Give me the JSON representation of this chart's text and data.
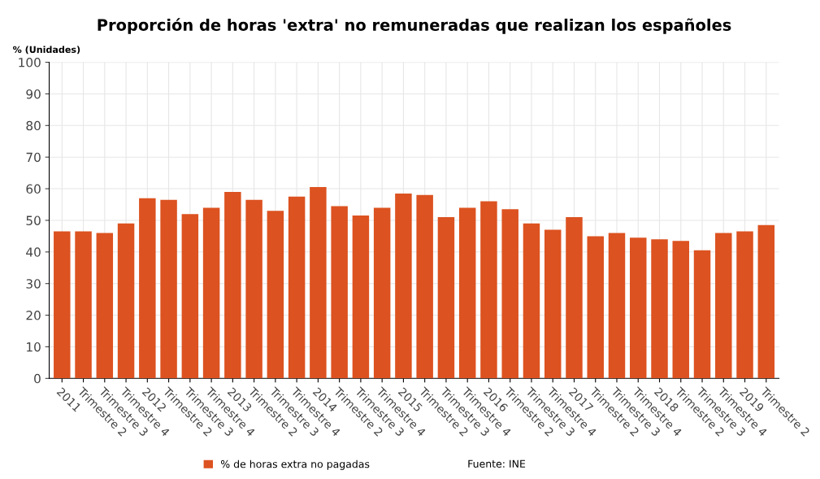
{
  "chart_data": {
    "type": "bar",
    "title": "Proporción de horas 'extra' no remuneradas que realizan los españoles",
    "ylabel": "% (Unidades)",
    "categories": [
      "2011",
      "Trimestre 2",
      "Trimestre 3",
      "Trimestre 4",
      "2012",
      "Trimestre 2",
      "Trimestre 3",
      "Trimestre 4",
      "2013",
      "Trimestre 2",
      "Trimestre 3",
      "Trimestre 4",
      "2014",
      "Trimestre 2",
      "Trimestre 3",
      "Trimestre 4",
      "2015",
      "Trimestre 2",
      "Trimestre 3",
      "Trimestre 4",
      "2016",
      "Trimestre 2",
      "Trimestre 3",
      "Trimestre 4",
      "2017",
      "Trimestre 2",
      "Trimestre 3",
      "Trimestre 4",
      "2018",
      "Trimestre 2",
      "Trimestre 3",
      "Trimestre 4",
      "2019",
      "Trimestre 2"
    ],
    "series": [
      {
        "name": "% de horas extra no pagadas",
        "color": "#dc5220",
        "values": [
          46.5,
          46.5,
          46,
          49,
          57,
          56.5,
          52,
          54,
          59,
          56.5,
          53,
          57.5,
          60.5,
          54.5,
          51.5,
          54,
          58.5,
          58,
          51,
          54,
          56,
          53.5,
          49,
          47,
          51,
          45,
          46,
          44.5,
          44,
          43.5,
          40.5,
          46,
          46.5,
          48.5
        ]
      }
    ],
    "ylim": [
      0,
      100
    ],
    "yticks": [
      0,
      10,
      20,
      30,
      40,
      50,
      60,
      70,
      80,
      90,
      100
    ],
    "grid": true,
    "legend": "bottom",
    "annotations": [
      "Fuente: INE"
    ]
  }
}
